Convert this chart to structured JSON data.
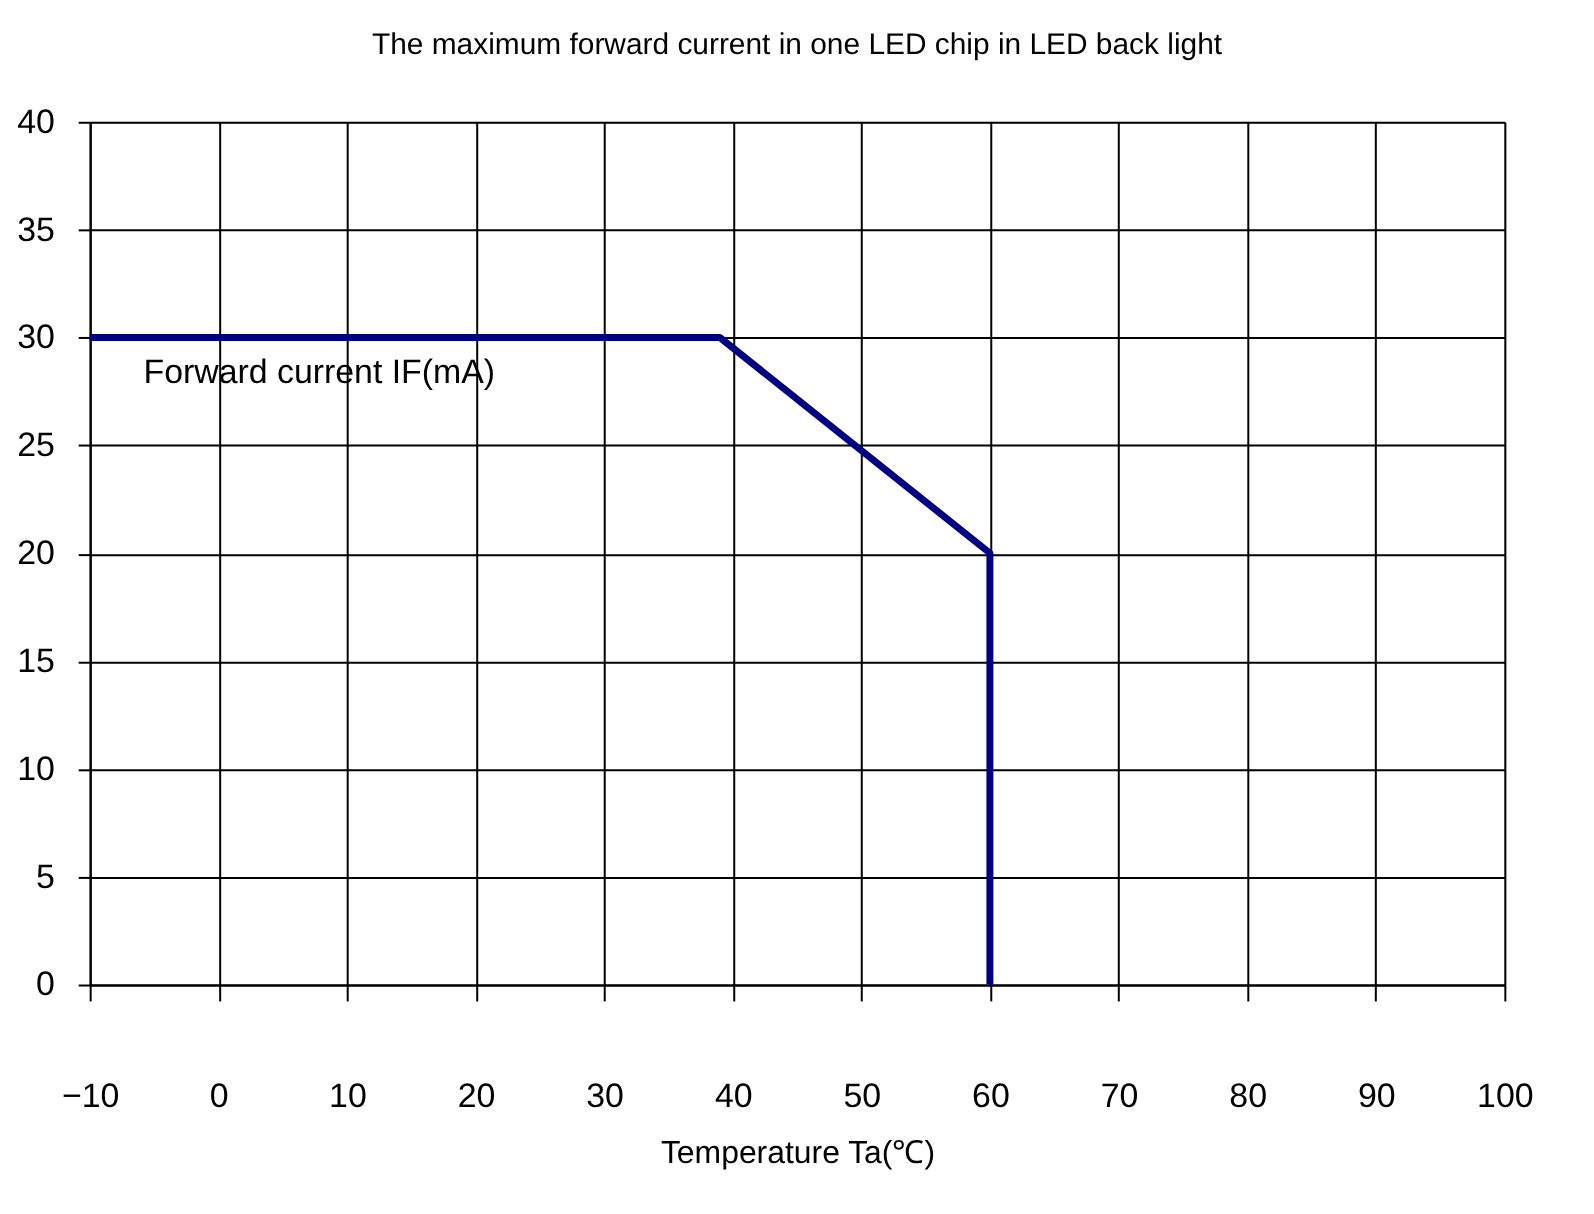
{
  "chart_data": {
    "type": "line",
    "title": "The maximum forward current in one LED chip in LED back light",
    "xlabel": "Temperature Ta(℃)",
    "x": [
      -10,
      39,
      60,
      60
    ],
    "series": [
      {
        "name": "Forward current IF(mA)",
        "color": "#000080",
        "values": [
          30,
          30,
          20,
          0
        ]
      }
    ],
    "xlim": [
      -10,
      100
    ],
    "xticks": [
      -10,
      0,
      10,
      20,
      30,
      40,
      50,
      60,
      70,
      80,
      90,
      100
    ],
    "ylim": [
      0,
      40
    ],
    "yticks": [
      0,
      5,
      10,
      15,
      20,
      25,
      30,
      35,
      40
    ],
    "grid": true,
    "marker": "none",
    "line_style": "solid"
  }
}
